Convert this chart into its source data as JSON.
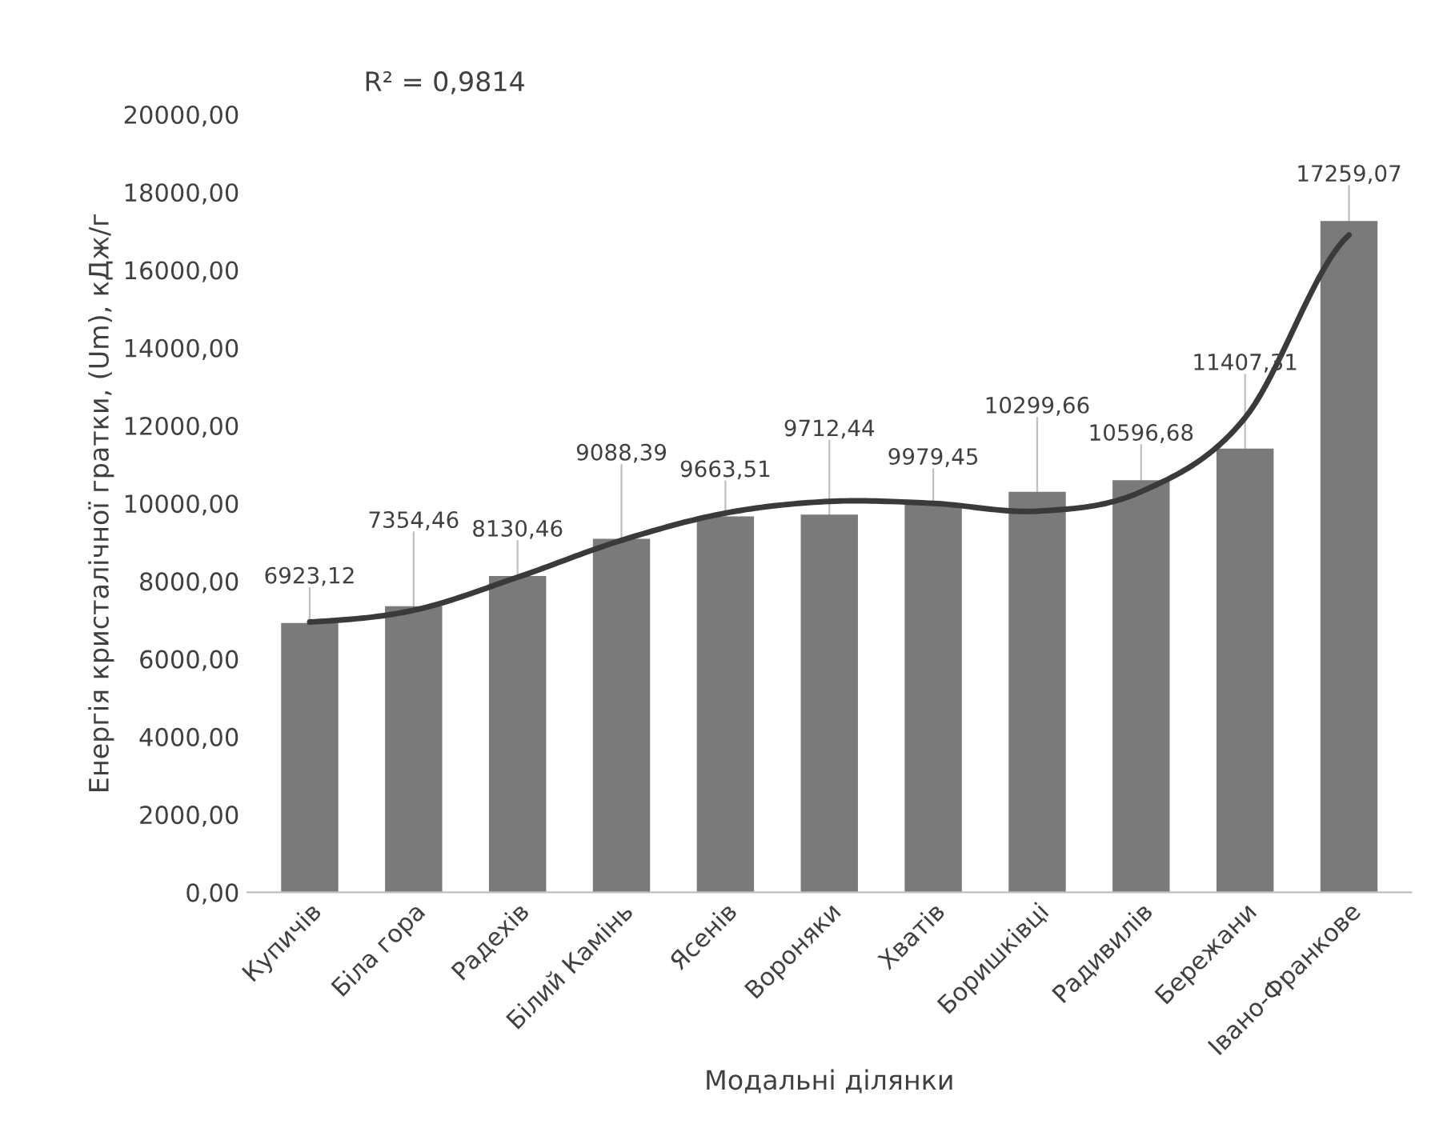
{
  "chart_data": {
    "type": "bar",
    "xlabel": "Модальні ділянки",
    "ylabel": "Енергія кристалічної гратки, (Um), кДж/г",
    "categories": [
      "Купичів",
      "Біла гора",
      "Радехів",
      "Білий Камінь",
      "Ясенів",
      "Вороняки",
      "Хватів",
      "Боришківці",
      "Радивилів",
      "Бережани",
      "Івано-Франкове"
    ],
    "series": [
      {
        "color": "#7a7a7a",
        "values": [
          6923.12,
          7354.46,
          8130.46,
          9088.39,
          9663.51,
          9712.44,
          9979.45,
          10299.66,
          10596.68,
          11407.31,
          17259.07
        ],
        "value_labels": [
          "6923,12",
          "7354,46",
          "8130,46",
          "9088,39",
          "9663,51",
          "9712,44",
          "9979,45",
          "10299,66",
          "10596,68",
          "11407,31",
          "17259,07"
        ]
      },
      {
        "type": "line",
        "color": "#3a3a3a",
        "values": [
          6950,
          7250,
          8100,
          9050,
          9750,
          10050,
          10000,
          9800,
          10300,
          12200,
          16900
        ]
      }
    ],
    "ylim": [
      0,
      20000
    ],
    "yticks": [
      {
        "value": 0,
        "label": "0,00"
      },
      {
        "value": 2000,
        "label": "2000,00"
      },
      {
        "value": 4000,
        "label": "4000,00"
      },
      {
        "value": 6000,
        "label": "6000,00"
      },
      {
        "value": 8000,
        "label": "8000,00"
      },
      {
        "value": 10000,
        "label": "10000,00"
      },
      {
        "value": 12000,
        "label": "12000,00"
      },
      {
        "value": 14000,
        "label": "14000,00"
      },
      {
        "value": 16000,
        "label": "16000,00"
      },
      {
        "value": 18000,
        "label": "18000,00"
      },
      {
        "value": 20000,
        "label": "20000,00"
      }
    ],
    "annotations": [
      "R² = 0,9814"
    ],
    "grid": false,
    "legend": false
  }
}
